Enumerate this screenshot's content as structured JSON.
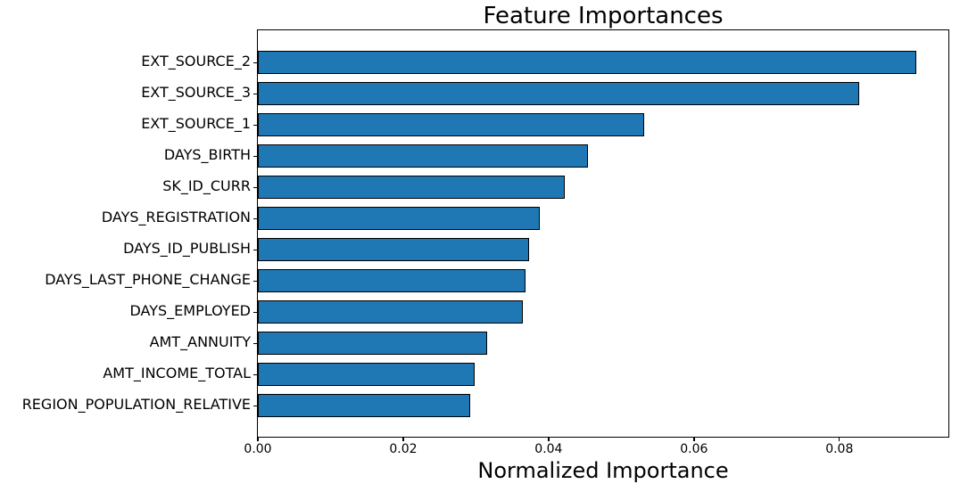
{
  "figure": {
    "background_color": "#ffffff",
    "text_color": "#000000"
  },
  "chart_data": {
    "type": "bar",
    "orientation": "horizontal",
    "title": "Feature Importances",
    "xlabel": "Normalized Importance",
    "ylabel": "",
    "categories": [
      "EXT_SOURCE_2",
      "EXT_SOURCE_3",
      "EXT_SOURCE_1",
      "DAYS_BIRTH",
      "SK_ID_CURR",
      "DAYS_REGISTRATION",
      "DAYS_ID_PUBLISH",
      "DAYS_LAST_PHONE_CHANGE",
      "DAYS_EMPLOYED",
      "AMT_ANNUITY",
      "AMT_INCOME_TOTAL",
      "REGION_POPULATION_RELATIVE"
    ],
    "values": [
      0.0906,
      0.0827,
      0.0531,
      0.0454,
      0.0422,
      0.0388,
      0.0373,
      0.0368,
      0.0364,
      0.0315,
      0.0298,
      0.0292
    ],
    "xlim": [
      0,
      0.095
    ],
    "xticks": [
      0,
      0.02,
      0.04,
      0.06,
      0.08
    ],
    "xtick_labels": [
      "0.00",
      "0.02",
      "0.04",
      "0.06",
      "0.08"
    ],
    "bar_color": "#1f77b4",
    "bar_edge_color": "#000000",
    "grid": false,
    "legend_position": "none"
  }
}
